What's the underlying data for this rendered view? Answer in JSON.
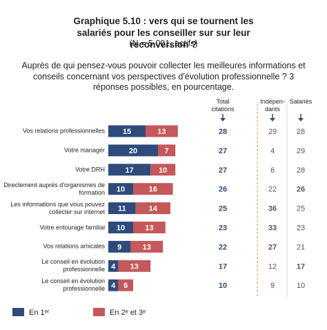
{
  "chart_data": {
    "type": "bar",
    "orientation": "horizontal",
    "stacked": true,
    "title": "Graphique 5.10 : vers qui se tournent les salariés pour les conseiller sur sur leur reconversion ?",
    "subtitle": "(N = 5 001, actifs)",
    "question": "Auprès de qui pensez-vous pouvoir collecter les meilleures informations et conseils concernant vos perspectives d'évolution professionnelle ? 3 réponses possibles, en pourcentage.",
    "categories": [
      "Vos relations professionnelles",
      "Votre manager",
      "Votre DRH",
      "Directement auprès d'organismes de formation",
      "Les informations que vous pouvez collecter sur internet",
      "Votre entourage familial",
      "Vos relations amicales",
      "Le conseil en évolution professionnelle",
      "Le conseil en évolution professionnelle"
    ],
    "series": [
      {
        "name": "En 1ᵉʳ",
        "color": "#2f4b7c",
        "values": [
          15,
          20,
          17,
          10,
          11,
          10,
          9,
          4,
          4
        ]
      },
      {
        "name": "En 2ᵉ et 3ᵉ",
        "color": "#c4585a",
        "values": [
          13,
          7,
          10,
          16,
          14,
          13,
          13,
          13,
          6
        ]
      }
    ],
    "table": {
      "columns": [
        {
          "header": "Total citations",
          "color": "#2f4b7c",
          "values": [
            28,
            27,
            27,
            26,
            25,
            23,
            22,
            17,
            10
          ],
          "bold": [
            true,
            true,
            true,
            true,
            true,
            true,
            true,
            true,
            true
          ]
        },
        {
          "header": "Indépen-dants",
          "color": "#555555",
          "values": [
            29,
            4,
            6,
            22,
            36,
            33,
            27,
            12,
            9
          ],
          "bold": [
            false,
            false,
            false,
            false,
            true,
            true,
            true,
            false,
            false
          ]
        },
        {
          "header": "Salariés",
          "color": "#555555",
          "values": [
            28,
            29,
            28,
            26,
            25,
            23,
            21,
            17,
            10
          ],
          "bold": [
            false,
            false,
            false,
            true,
            false,
            false,
            false,
            true,
            false
          ]
        }
      ]
    }
  }
}
